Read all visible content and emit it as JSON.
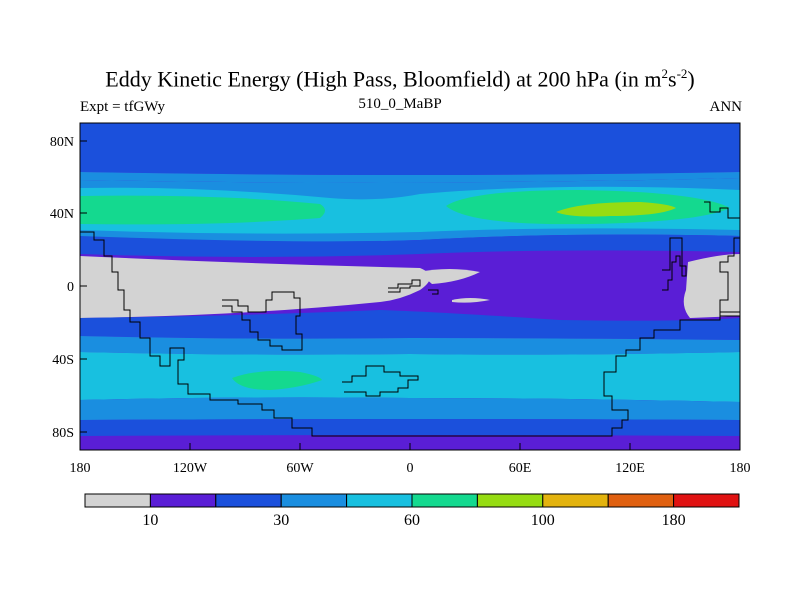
{
  "title": {
    "main": "Eddy Kinetic Energy (High Pass, Bloomfield) at 200 hPa (in m",
    "exp1": "2",
    "mid": "s",
    "exp2": "-2",
    "close": ")"
  },
  "subtitle_left": "Expt = tfGWy",
  "subtitle_center": "510_0_MaBP",
  "subtitle_right": "ANN",
  "map": {
    "x_ticks": [
      "180",
      "120W",
      "60W",
      "0",
      "60E",
      "120E",
      "180"
    ],
    "y_ticks": [
      "80N",
      "40N",
      "0",
      "40S",
      "80S"
    ],
    "lon_range": [
      -180,
      180
    ],
    "lat_range": [
      -90,
      90
    ]
  },
  "colorbar": {
    "colors": [
      "#d3d3d3",
      "#5a1ed6",
      "#1b50dc",
      "#1a8ee0",
      "#18c0e0",
      "#14d98f",
      "#96dc12",
      "#e3b30e",
      "#e06010",
      "#e01212"
    ],
    "labels": [
      {
        "text": "10",
        "boundary": 1
      },
      {
        "text": "30",
        "boundary": 3
      },
      {
        "text": "60",
        "boundary": 5
      },
      {
        "text": "100",
        "boundary": 7
      },
      {
        "text": "180",
        "boundary": 9
      }
    ]
  }
}
